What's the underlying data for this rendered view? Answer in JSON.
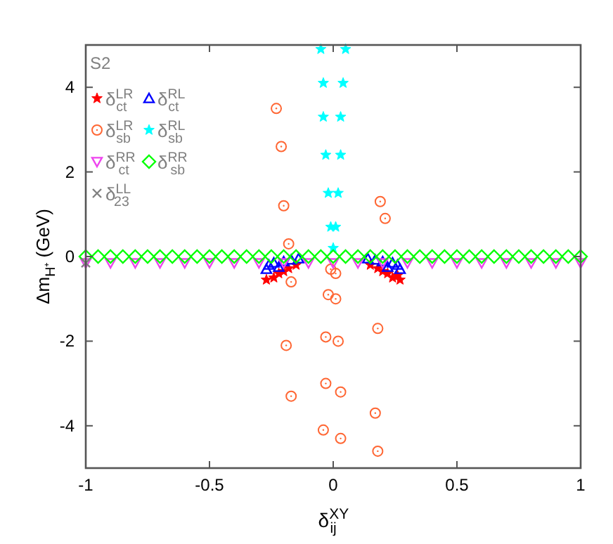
{
  "chart_data": {
    "type": "scatter",
    "xlabel": "δ$^{XY}$$_{ij}$",
    "ylabel": "Δm$_{H⁺}$ (GeV)",
    "annotations": [
      "S2"
    ],
    "xlim": [
      -1,
      1
    ],
    "ylim": [
      -5,
      5
    ],
    "xticks": [
      -1,
      -0.5,
      0,
      0.5,
      1
    ],
    "yticks": [
      -4,
      -2,
      0,
      2,
      4
    ],
    "grid": false,
    "legend": "top left",
    "series": [
      {
        "name": "δ$^{LR}$$_{ct}$",
        "color": "#ff0000",
        "marker": "star",
        "x": [
          -0.27,
          -0.24,
          -0.22,
          -0.2,
          -0.18,
          -0.15,
          0.15,
          0.18,
          0.2,
          0.22,
          0.24,
          0.26,
          0.27
        ],
        "values": [
          -0.55,
          -0.5,
          -0.4,
          -0.35,
          -0.28,
          -0.2,
          -0.2,
          -0.28,
          -0.35,
          -0.4,
          -0.5,
          -0.45,
          -0.55
        ]
      },
      {
        "name": "δ$^{RL}$$_{ct}$",
        "color": "#0000ff",
        "marker": "triangle",
        "x": [
          -0.27,
          -0.26,
          -0.24,
          -0.22,
          -0.2,
          -0.17,
          -0.14,
          0.14,
          0.17,
          0.2,
          0.22,
          0.24,
          0.26,
          0.27
        ],
        "values": [
          -0.3,
          -0.2,
          -0.15,
          -0.25,
          -0.12,
          -0.08,
          -0.05,
          -0.05,
          -0.08,
          -0.12,
          -0.25,
          -0.15,
          -0.2,
          -0.3
        ]
      },
      {
        "name": "δ$^{LR}$$_{sb}$",
        "color": "#ff6633",
        "marker": "circle",
        "x": [
          -0.23,
          -0.21,
          -0.2,
          -0.18,
          0.19,
          0.21,
          -0.01,
          0.01,
          -0.17,
          -0.02,
          0.01,
          0.18,
          -0.03,
          0.02,
          -0.19,
          -0.03,
          0.03,
          -0.17,
          0.17,
          -0.04,
          0.03,
          0.18
        ],
        "values": [
          3.5,
          2.6,
          1.2,
          0.3,
          1.3,
          0.9,
          -0.3,
          -0.4,
          -0.6,
          -0.9,
          -1,
          -1.7,
          -1.9,
          -2,
          -2.1,
          -3,
          -3.2,
          -3.3,
          -3.7,
          -4.1,
          -4.3,
          -4.6
        ]
      },
      {
        "name": "δ$^{RL}$$_{sb}$",
        "color": "#00ffff",
        "marker": "star",
        "x": [
          -0.05,
          0.05,
          -0.04,
          0.04,
          -0.04,
          0.03,
          -0.03,
          0.03,
          -0.02,
          0.02,
          -0.01,
          0.01,
          0
        ],
        "values": [
          4.9,
          4.9,
          4.1,
          4.1,
          3.3,
          3.3,
          2.4,
          2.4,
          1.5,
          1.5,
          0.7,
          0.7,
          0.2
        ]
      },
      {
        "name": "δ$^{RR}$$_{ct}$",
        "color": "#ee44ee",
        "marker": "triangle-down",
        "x": [
          -1,
          -0.9,
          -0.8,
          -0.7,
          -0.6,
          -0.5,
          -0.4,
          -0.3,
          -0.2,
          -0.1,
          0,
          0.1,
          0.2,
          0.3,
          0.4,
          0.5,
          0.6,
          0.7,
          0.8,
          0.9,
          1
        ],
        "values": [
          -0.15,
          -0.15,
          -0.15,
          -0.15,
          -0.15,
          -0.15,
          -0.15,
          -0.15,
          -0.15,
          -0.15,
          -0.15,
          -0.15,
          -0.15,
          -0.15,
          -0.15,
          -0.15,
          -0.15,
          -0.15,
          -0.15,
          -0.15,
          -0.15
        ]
      },
      {
        "name": "δ$^{RR}$$_{sb}$",
        "color": "#00ff00",
        "marker": "diamond",
        "x": [
          -1,
          -0.95,
          -0.9,
          -0.85,
          -0.8,
          -0.75,
          -0.7,
          -0.65,
          -0.6,
          -0.55,
          -0.5,
          -0.45,
          -0.4,
          -0.35,
          -0.3,
          -0.25,
          -0.2,
          -0.15,
          -0.1,
          -0.05,
          0,
          0.05,
          0.1,
          0.15,
          0.2,
          0.25,
          0.3,
          0.35,
          0.4,
          0.45,
          0.5,
          0.55,
          0.6,
          0.65,
          0.7,
          0.75,
          0.8,
          0.85,
          0.9,
          0.95,
          1
        ],
        "values": [
          0,
          0,
          0,
          0,
          0,
          0,
          0,
          0,
          0,
          0,
          0,
          0,
          0,
          0,
          0,
          0,
          0,
          0,
          0,
          0,
          0,
          0,
          0,
          0,
          0,
          0,
          0,
          0,
          0,
          0,
          0,
          0,
          0,
          0,
          0,
          0,
          0,
          0,
          0,
          0,
          0
        ]
      },
      {
        "name": "δ$^{LL}$$_{23}$",
        "color": "#808080",
        "marker": "cross",
        "x": [
          -1
        ],
        "values": [
          -0.15
        ]
      }
    ]
  }
}
